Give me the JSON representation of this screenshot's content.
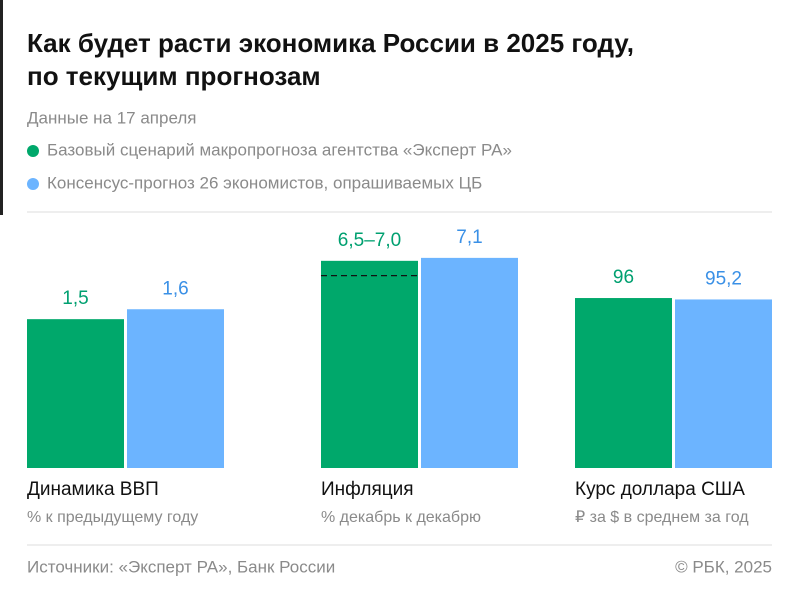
{
  "title": "Как будет расти экономика России в 2025 году,",
  "title_line2": "по текущим прогнозам",
  "subtitle": "Данные на 17 апреля",
  "legend": [
    {
      "name": "Базовый сценарий макропрогноза агентства «Эксперт РА»",
      "color": "#00a86b"
    },
    {
      "name": "Консенсус-прогноз 26 экономистов, опрашиваемых ЦБ",
      "color": "#6cb4ff"
    }
  ],
  "source": "Источники: «Эксперт РА», Банк России",
  "copyright": "© РБК, 2025",
  "chart_data": [
    {
      "type": "bar",
      "title": "Динамика ВВП",
      "subtitle": "% к предыдущему году",
      "values": [
        1.5,
        1.6
      ],
      "value_labels": [
        "1,5",
        "1,6"
      ],
      "ylim": [
        0,
        2.58
      ]
    },
    {
      "type": "bar",
      "title": "Инфляция",
      "subtitle": "% декабрь к декабрю",
      "values": [
        7.0,
        7.1
      ],
      "range_low": [
        6.5,
        null
      ],
      "value_labels": [
        "6,5–7,0",
        "7,1"
      ],
      "ylim": [
        0,
        8.65
      ]
    },
    {
      "type": "bar",
      "title": "Курс доллара США",
      "subtitle": "₽ за $ в среднем за год",
      "values": [
        96,
        95.2
      ],
      "value_labels": [
        "96",
        "95,2"
      ],
      "ylim": [
        0,
        144.6
      ]
    }
  ]
}
